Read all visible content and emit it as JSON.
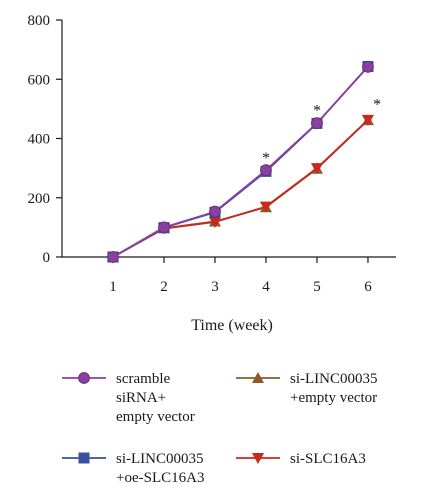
{
  "chart_data": {
    "type": "line",
    "title": "",
    "xlabel": "Time (week)",
    "ylabel": "",
    "x": [
      1,
      2,
      3,
      4,
      5,
      6
    ],
    "xlim": [
      0,
      6.55
    ],
    "ylim": [
      0,
      800
    ],
    "x_ticks": [
      "1",
      "2",
      "3",
      "4",
      "5",
      "6"
    ],
    "y_ticks": [
      "0",
      "200",
      "400",
      "600",
      "800"
    ],
    "grid": false,
    "legend_position": "bottom",
    "series": [
      {
        "name": "scramble siRNA+ empty vector",
        "legend_lines": [
          "scramble",
          "siRNA+",
          "empty vector"
        ],
        "values": [
          0,
          100,
          153,
          293,
          452,
          642
        ],
        "color": "#8B3FA0",
        "marker": "circle"
      },
      {
        "name": "si-LINC00035 +empty vector",
        "legend_lines": [
          "si-LINC00035",
          "+empty vector"
        ],
        "values": [
          0,
          97,
          120,
          168,
          298,
          462
        ],
        "color": "#8B5A2B",
        "marker": "triangle-up"
      },
      {
        "name": "si-LINC00035 +oe-SLC16A3",
        "legend_lines": [
          "si-LINC00035",
          "+oe-SLC16A3"
        ],
        "values": [
          0,
          99,
          151,
          289,
          451,
          643
        ],
        "color": "#3A4FA0",
        "marker": "square"
      },
      {
        "name": "si-SLC16A3",
        "legend_lines": [
          "si-SLC16A3"
        ],
        "values": [
          0,
          96,
          118,
          170,
          300,
          463
        ],
        "color": "#C8281E",
        "marker": "triangle-down"
      }
    ],
    "annotations": [
      {
        "x": 4,
        "y": 345,
        "text": "*"
      },
      {
        "x": 5,
        "y": 505,
        "text": "*"
      },
      {
        "x": 6.18,
        "y": 525,
        "text": "*"
      }
    ]
  }
}
